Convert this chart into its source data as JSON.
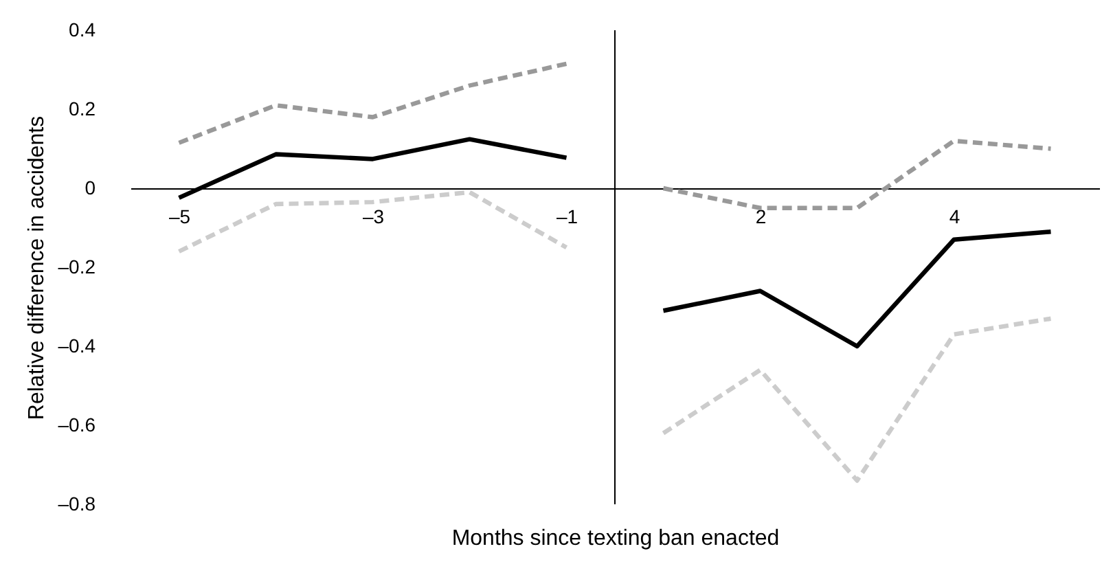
{
  "chart_data": {
    "type": "line",
    "xlabel": "Months since texting ban enacted",
    "ylabel": "Relative difference in accidents",
    "categories": [
      "–5",
      null,
      "–3",
      null,
      "–1",
      null,
      "2",
      null,
      "4",
      null
    ],
    "ylim": [
      -0.8,
      0.4
    ],
    "yticks": [
      {
        "value": -0.8,
        "label": "–0.8"
      },
      {
        "value": -0.6,
        "label": "–0.6"
      },
      {
        "value": -0.4,
        "label": "–0.4"
      },
      {
        "value": -0.2,
        "label": "–0.2"
      },
      0,
      0.2,
      0.4
    ],
    "grid": false,
    "series": [
      {
        "color": "#999999",
        "line_style": "dashed",
        "values": [
          0.115,
          0.21,
          0.18,
          0.26,
          0.315,
          null,
          null,
          null,
          null,
          null
        ]
      },
      {
        "color": "#000000",
        "line_style": "solid",
        "values": [
          -0.024,
          0.086,
          0.074,
          0.124,
          0.077,
          null,
          null,
          null,
          null,
          null
        ]
      },
      {
        "color": "#cccccc",
        "line_style": "dashed",
        "values": [
          -0.16,
          -0.04,
          -0.035,
          -0.01,
          -0.15,
          null,
          null,
          null,
          null,
          null
        ]
      },
      {
        "color": "#999999",
        "line_style": "dashed",
        "values": [
          null,
          null,
          null,
          null,
          null,
          0.0,
          -0.05,
          -0.05,
          0.12,
          0.1
        ]
      },
      {
        "color": "#000000",
        "line_style": "solid",
        "values": [
          null,
          null,
          null,
          null,
          null,
          -0.31,
          -0.26,
          -0.4,
          -0.13,
          -0.11
        ]
      },
      {
        "color": "#cccccc",
        "line_style": "dashed",
        "values": [
          null,
          null,
          null,
          null,
          null,
          -0.62,
          -0.46,
          -0.74,
          -0.37,
          -0.33
        ]
      }
    ]
  }
}
